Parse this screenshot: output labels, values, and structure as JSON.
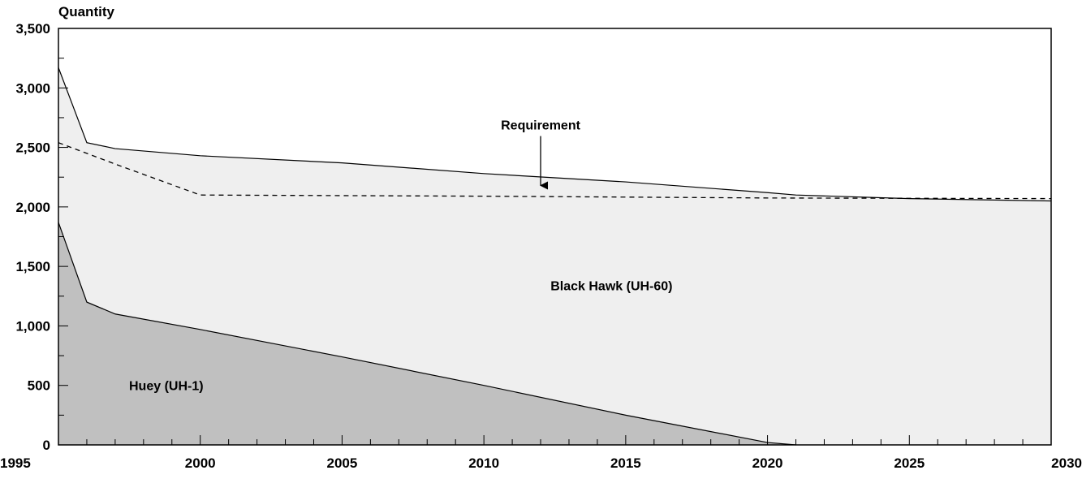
{
  "chart_data": {
    "type": "area",
    "ylabel": "Quantity",
    "xlim": [
      1995,
      2030
    ],
    "ylim": [
      0,
      3500
    ],
    "x_ticks": [
      1995,
      2000,
      2005,
      2010,
      2015,
      2020,
      2025,
      2030
    ],
    "x_tick_labels": [
      "1995",
      "2000",
      "2005",
      "2010",
      "2015",
      "2020",
      "2025",
      "2030"
    ],
    "y_ticks": [
      0,
      500,
      1000,
      1500,
      2000,
      2500,
      3000,
      3500
    ],
    "y_tick_labels": [
      "0",
      "500",
      "1,000",
      "1,500",
      "2,000",
      "2,500",
      "3,000",
      "3,500"
    ],
    "grid": false,
    "legend": "none",
    "colors": {
      "huey": "#c0c0c0",
      "black_hawk": "#efefef",
      "line": "#000000"
    },
    "series": [
      {
        "name": "Huey (UH-1)",
        "style": "stacked-area",
        "x": [
          1995,
          1996,
          1997,
          2000,
          2005,
          2010,
          2015,
          2020,
          2021
        ],
        "values": [
          1870,
          1200,
          1100,
          970,
          740,
          500,
          250,
          20,
          0
        ]
      },
      {
        "name": "Black Hawk (UH-60)",
        "style": "stacked-area",
        "x": [
          1995,
          1996,
          1997,
          2000,
          2005,
          2010,
          2015,
          2020,
          2021,
          2025,
          2030
        ],
        "values": [
          1300,
          1340,
          1390,
          1460,
          1630,
          1780,
          1960,
          2100,
          2100,
          2070,
          2050
        ]
      },
      {
        "name": "Requirement",
        "style": "dashed-line",
        "x": [
          1995,
          1996,
          1997,
          2000,
          2010,
          2020,
          2030
        ],
        "values": [
          2540,
          2450,
          2360,
          2100,
          2090,
          2075,
          2070
        ]
      }
    ],
    "annotations": [
      {
        "text": "Requirement",
        "x": 2012,
        "y": 2650,
        "arrow_to": [
          2012,
          2180
        ]
      },
      {
        "text": "Black Hawk (UH-60)",
        "x": 2014.5,
        "y": 1300
      },
      {
        "text": "Huey (UH-1)",
        "x": 1998.8,
        "y": 460
      }
    ]
  }
}
